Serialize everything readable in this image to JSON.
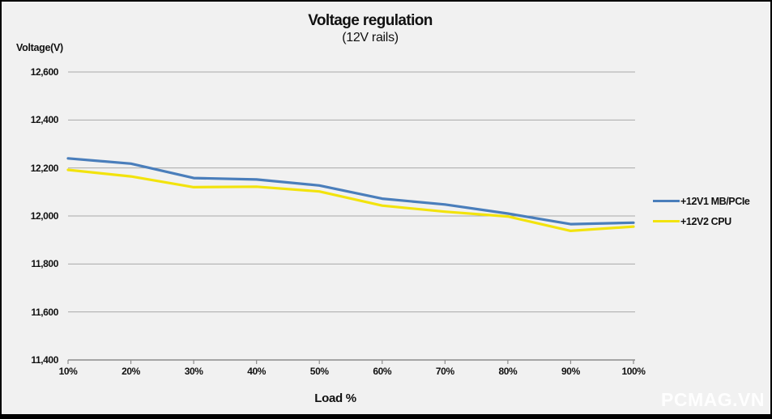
{
  "frame": {
    "background": "#f1f1f1",
    "gridline_color": "#a9a9a9",
    "axis_color": "#8c8c8c"
  },
  "header": {
    "title": "Voltage regulation",
    "subtitle": "(12V rails)"
  },
  "watermark": "PCMAG.VN",
  "chart_data": {
    "type": "line",
    "title": "Voltage regulation",
    "subtitle": "(12V rails)",
    "xlabel": "Load %",
    "ylabel": "Voltage(V)",
    "categories": [
      "10%",
      "20%",
      "30%",
      "40%",
      "50%",
      "60%",
      "70%",
      "80%",
      "90%",
      "100%"
    ],
    "ylim": [
      11400,
      12600
    ],
    "ytick_step": 200,
    "ytick_labels": [
      "12,600",
      "12,400",
      "12,200",
      "12,000",
      "11,800",
      "11,600",
      "11,400"
    ],
    "grid": true,
    "legend_position": "right",
    "series": [
      {
        "name": "+12V1 MB/PCIe",
        "color": "#4a7ebb",
        "values": [
          12240,
          12218,
          12158,
          12152,
          12127,
          12072,
          12048,
          12010,
          11966,
          11972
        ]
      },
      {
        "name": "+12V2 CPU",
        "color": "#f2e30d",
        "values": [
          12192,
          12165,
          12120,
          12122,
          12102,
          12043,
          12018,
          11998,
          11938,
          11956
        ]
      }
    ]
  }
}
